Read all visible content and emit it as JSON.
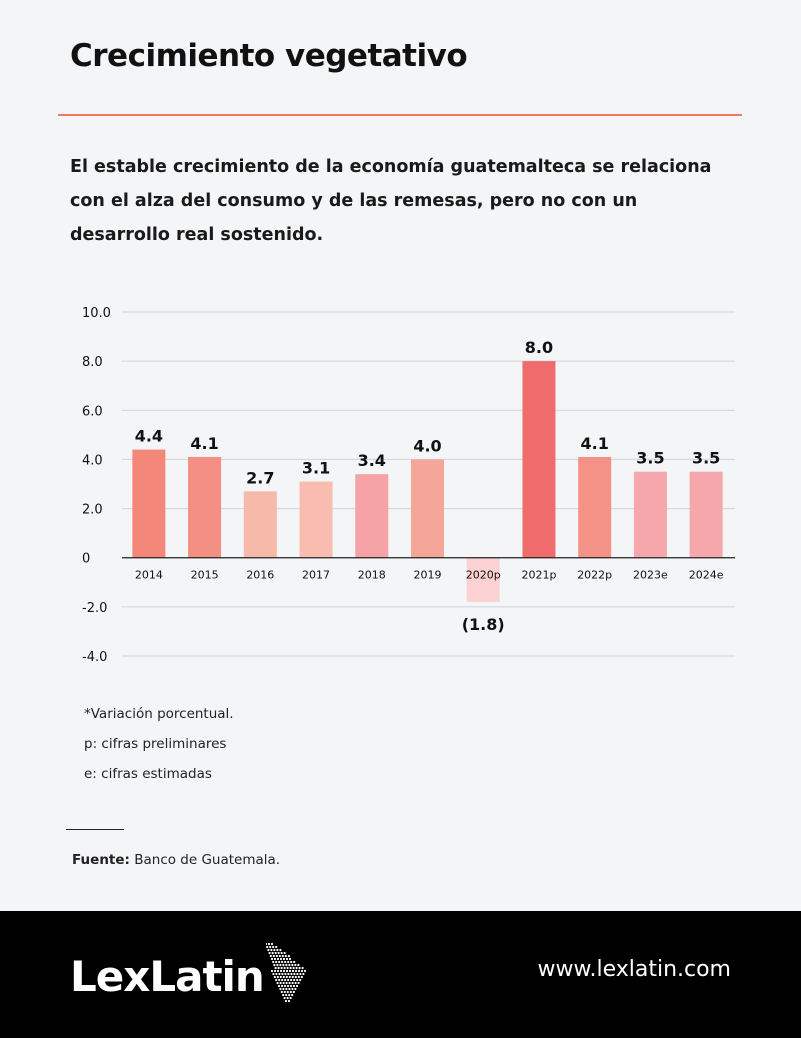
{
  "header": {
    "title": "Crecimiento vegetativo",
    "subtitle": "El estable crecimiento de la economía guatemalteca se relaciona con el alza del consumo y de las remesas, pero no con un desarrollo real sostenido."
  },
  "chart_data": {
    "type": "bar",
    "categories": [
      "2014",
      "2015",
      "2016",
      "2017",
      "2018",
      "2019",
      "2020p",
      "2021p",
      "2022p",
      "2023e",
      "2024e"
    ],
    "values": [
      4.4,
      4.1,
      2.7,
      3.1,
      3.4,
      4.0,
      -1.8,
      8.0,
      4.1,
      3.5,
      3.5
    ],
    "value_labels": [
      "4.4",
      "4.1",
      "2.7",
      "3.1",
      "3.4",
      "4.0",
      "(1.8)",
      "8.0",
      "4.1",
      "3.5",
      "3.5"
    ],
    "bar_colors": [
      "#f3877a",
      "#f48f84",
      "#f7b9a9",
      "#f8bcb0",
      "#f5a3a6",
      "#f4a799",
      "#fcd1d3",
      "#f06b6c",
      "#f49288",
      "#f6a7ab",
      "#f6a7ab"
    ],
    "yticks": [
      "10.0",
      "8.0",
      "6.0",
      "4.0",
      "2.0",
      "0",
      "-2.0",
      "-4.0"
    ],
    "ytick_values": [
      10,
      8,
      6,
      4,
      2,
      0,
      -2,
      -4
    ],
    "ylim": [
      -4,
      10
    ],
    "grid": true,
    "gridline_color": "#cfd3d8",
    "axis_color": "#222222"
  },
  "notes": [
    "*Variación porcentual.",
    "p: cifras preliminares",
    "e: cifras estimadas"
  ],
  "source": {
    "label": "Fuente:",
    "text": " Banco de Guatemala."
  },
  "footer": {
    "logo_text": "LexLatin",
    "logo_icon": "latin-america-map-icon",
    "url": "www.lexlatin.com"
  }
}
